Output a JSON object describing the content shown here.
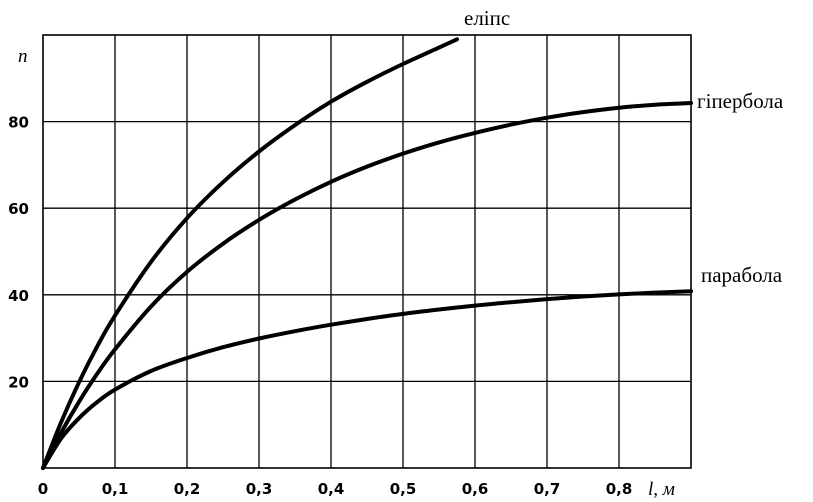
{
  "chart_data": {
    "type": "line",
    "title": "",
    "xlabel": "l, м",
    "ylabel": "n",
    "xlim": [
      0,
      0.9
    ],
    "ylim": [
      0,
      100
    ],
    "grid": true,
    "x_ticks": [
      {
        "value": 0,
        "label": "0"
      },
      {
        "value": 0.1,
        "label": "0,1"
      },
      {
        "value": 0.2,
        "label": "0,2"
      },
      {
        "value": 0.3,
        "label": "0,3"
      },
      {
        "value": 0.4,
        "label": "0,4"
      },
      {
        "value": 0.5,
        "label": "0,5"
      },
      {
        "value": 0.6,
        "label": "0,6"
      },
      {
        "value": 0.7,
        "label": "0,7"
      },
      {
        "value": 0.8,
        "label": "0,8"
      }
    ],
    "y_ticks": [
      {
        "value": 20,
        "label": "20"
      },
      {
        "value": 40,
        "label": "40"
      },
      {
        "value": 60,
        "label": "60"
      },
      {
        "value": 80,
        "label": "80"
      }
    ],
    "series": [
      {
        "name": "еліпс",
        "x": [
          0,
          0.025,
          0.05,
          0.075,
          0.1,
          0.15,
          0.2,
          0.25,
          0.3,
          0.35,
          0.4,
          0.45,
          0.5,
          0.55,
          0.575
        ],
        "y": [
          0,
          10.5,
          19.8,
          28.0,
          35.2,
          47.6,
          57.7,
          66.0,
          73.1,
          79.2,
          84.6,
          89.2,
          93.3,
          97.1,
          99
        ]
      },
      {
        "name": "гіпербола",
        "x": [
          0,
          0.025,
          0.05,
          0.075,
          0.1,
          0.15,
          0.2,
          0.25,
          0.3,
          0.35,
          0.4,
          0.45,
          0.5,
          0.55,
          0.6,
          0.65,
          0.7,
          0.75,
          0.8,
          0.85,
          0.9
        ],
        "y": [
          0,
          8.1,
          15.3,
          21.7,
          27.4,
          37.3,
          45.3,
          51.8,
          57.3,
          62.0,
          66.1,
          69.6,
          72.6,
          75.2,
          77.4,
          79.3,
          80.9,
          82.2,
          83.2,
          83.9,
          84.3
        ]
      },
      {
        "name": "парабола",
        "x": [
          0,
          0.025,
          0.05,
          0.075,
          0.1,
          0.15,
          0.2,
          0.25,
          0.3,
          0.35,
          0.4,
          0.45,
          0.5,
          0.55,
          0.6,
          0.65,
          0.7,
          0.75,
          0.8,
          0.85,
          0.9
        ],
        "y": [
          0,
          6.8,
          11.5,
          15.2,
          18.1,
          22.4,
          25.4,
          27.9,
          29.9,
          31.6,
          33.1,
          34.4,
          35.6,
          36.6,
          37.5,
          38.3,
          39.0,
          39.6,
          40.1,
          40.5,
          40.8
        ]
      }
    ]
  }
}
